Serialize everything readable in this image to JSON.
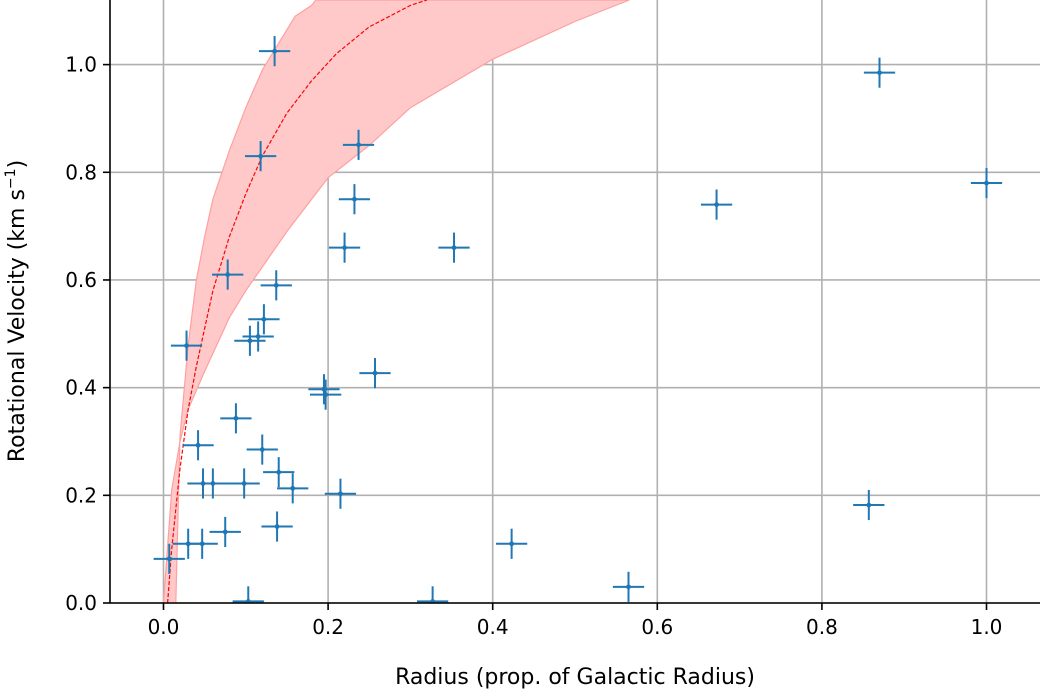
{
  "chart_data": {
    "type": "scatter",
    "xlabel": "Radius (prop. of Galactic Radius)",
    "ylabel_main": "Rotational Velocity (km s",
    "ylabel_sup": "−1",
    "ylabel_close": ")",
    "xlim": [
      -0.065,
      1.065
    ],
    "ylim": [
      0.0,
      1.12
    ],
    "grid": true,
    "x_ticks": [
      0.0,
      0.2,
      0.4,
      0.6,
      0.8,
      1.0
    ],
    "y_ticks": [
      0.0,
      0.2,
      0.4,
      0.6,
      0.8,
      1.0
    ],
    "x_tick_labels": [
      "0.0",
      "0.2",
      "0.4",
      "0.6",
      "0.8",
      "1.0"
    ],
    "y_tick_labels": [
      "0.0",
      "0.2",
      "0.4",
      "0.6",
      "0.8",
      "1.0"
    ],
    "colors": {
      "points": "#1f77b4",
      "model_line": "#ff0000",
      "band_fill": "#ffc9c9",
      "band_edge": "#ffa0a0",
      "grid": "#b0b0b0"
    },
    "series": [
      {
        "kind": "errorbar",
        "x_err": 0.019,
        "y_err": 0.028,
        "points": [
          {
            "x": 0.007,
            "y": 0.082
          },
          {
            "x": 0.03,
            "y": 0.11
          },
          {
            "x": 0.047,
            "y": 0.11
          },
          {
            "x": 0.028,
            "y": 0.478
          },
          {
            "x": 0.042,
            "y": 0.293
          },
          {
            "x": 0.048,
            "y": 0.222
          },
          {
            "x": 0.06,
            "y": 0.222
          },
          {
            "x": 0.075,
            "y": 0.132
          },
          {
            "x": 0.078,
            "y": 0.61
          },
          {
            "x": 0.088,
            "y": 0.343
          },
          {
            "x": 0.098,
            "y": 0.222
          },
          {
            "x": 0.103,
            "y": 0.003
          },
          {
            "x": 0.105,
            "y": 0.487
          },
          {
            "x": 0.115,
            "y": 0.495
          },
          {
            "x": 0.118,
            "y": 0.83
          },
          {
            "x": 0.12,
            "y": 0.285
          },
          {
            "x": 0.122,
            "y": 0.527
          },
          {
            "x": 0.135,
            "y": 1.025
          },
          {
            "x": 0.137,
            "y": 0.59
          },
          {
            "x": 0.138,
            "y": 0.142
          },
          {
            "x": 0.14,
            "y": 0.243
          },
          {
            "x": 0.157,
            "y": 0.213
          },
          {
            "x": 0.195,
            "y": 0.397
          },
          {
            "x": 0.197,
            "y": 0.387
          },
          {
            "x": 0.215,
            "y": 0.203
          },
          {
            "x": 0.22,
            "y": 0.66
          },
          {
            "x": 0.232,
            "y": 0.75
          },
          {
            "x": 0.237,
            "y": 0.851
          },
          {
            "x": 0.257,
            "y": 0.427
          },
          {
            "x": 0.327,
            "y": 0.003
          },
          {
            "x": 0.353,
            "y": 0.66
          },
          {
            "x": 0.423,
            "y": 0.11
          },
          {
            "x": 0.565,
            "y": 0.03
          },
          {
            "x": 0.672,
            "y": 0.74
          },
          {
            "x": 0.857,
            "y": 0.182
          },
          {
            "x": 0.87,
            "y": 0.985
          },
          {
            "x": 1.0,
            "y": 0.78
          }
        ]
      },
      {
        "kind": "model_line",
        "style": "dashed",
        "x": [
          0.005,
          0.01,
          0.02,
          0.03,
          0.04,
          0.06,
          0.08,
          0.1,
          0.12,
          0.15,
          0.18,
          0.21,
          0.25,
          0.3,
          0.32
        ],
        "y": [
          0.0,
          0.1,
          0.25,
          0.36,
          0.44,
          0.58,
          0.68,
          0.76,
          0.83,
          0.91,
          0.97,
          1.02,
          1.07,
          1.11,
          1.12
        ]
      },
      {
        "kind": "band",
        "upper": {
          "x": [
            0.015,
            0.02,
            0.03,
            0.04,
            0.05,
            0.06,
            0.08,
            0.1,
            0.12,
            0.14,
            0.16,
            0.18,
            0.185
          ],
          "y": [
            0.0,
            0.31,
            0.48,
            0.6,
            0.68,
            0.75,
            0.84,
            0.92,
            0.99,
            1.04,
            1.09,
            1.11,
            1.12
          ]
        },
        "lower": {
          "x": [
            0.0,
            0.01,
            0.02,
            0.03,
            0.05,
            0.08,
            0.1,
            0.15,
            0.2,
            0.25,
            0.3,
            0.4,
            0.5,
            0.566
          ],
          "y": [
            0.0,
            0.21,
            0.3,
            0.36,
            0.43,
            0.53,
            0.58,
            0.69,
            0.79,
            0.85,
            0.92,
            1.01,
            1.08,
            1.12
          ]
        }
      }
    ]
  }
}
